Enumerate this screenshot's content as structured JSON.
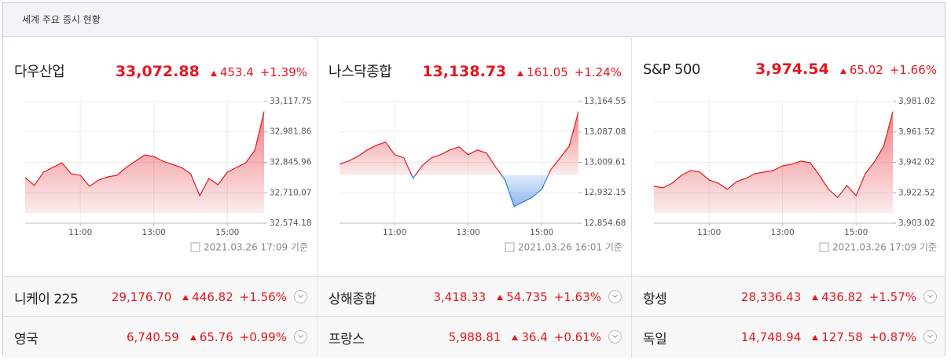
{
  "header": {
    "title": "세계 주요 증시 현황"
  },
  "chart_data": [
    {
      "type": "line",
      "title": "다우산업",
      "price": "33,072.88",
      "change": 453.4,
      "change_pct": "+1.39%",
      "x": [
        570,
        585,
        600,
        615,
        630,
        645,
        660,
        675,
        690,
        705,
        720,
        735,
        750,
        765,
        780,
        795,
        810,
        825,
        840,
        855,
        870,
        885,
        900,
        915,
        930,
        945,
        960
      ],
      "values": [
        32778,
        32743,
        32802,
        32823,
        32844,
        32795,
        32788,
        32739,
        32767,
        32781,
        32788,
        32823,
        32851,
        32879,
        32872,
        32851,
        32837,
        32823,
        32795,
        32697,
        32774,
        32746,
        32802,
        32823,
        32844,
        32900,
        33072.88
      ],
      "xlim": [
        570,
        960
      ],
      "xticks": [
        {
          "value": 660,
          "label": "11:00"
        },
        {
          "value": 780,
          "label": "13:00"
        },
        {
          "value": 900,
          "label": "15:00"
        }
      ],
      "ylim": [
        32574.18,
        33117.75
      ],
      "yticks": [
        {
          "value": 32574.18,
          "label": "32,574.18"
        },
        {
          "value": 32710.07,
          "label": "32,710.07"
        },
        {
          "value": 32845.96,
          "label": "32,845.96"
        },
        {
          "value": 32981.86,
          "label": "32,981.86"
        },
        {
          "value": 33117.75,
          "label": "33,117.75"
        }
      ],
      "grid": true,
      "timestamp": "2021.03.26 17:09 기준",
      "color": "#e3171f",
      "color_down": "#2d7be0"
    },
    {
      "type": "line",
      "title": "나스닥종합",
      "price": "13,138.73",
      "change": 161.05,
      "change_pct": "+1.24%",
      "x": [
        570,
        585,
        600,
        615,
        630,
        645,
        660,
        675,
        690,
        705,
        720,
        735,
        750,
        765,
        780,
        795,
        810,
        825,
        840,
        855,
        870,
        885,
        900,
        915,
        930,
        945,
        960
      ],
      "values": [
        13005,
        13013,
        13025,
        13041,
        13053,
        13061,
        13029,
        13021,
        12969,
        13001,
        13021,
        13029,
        13041,
        13049,
        13029,
        13041,
        13033,
        12997,
        12965,
        12897,
        12909,
        12921,
        12941,
        12991,
        13021,
        13051,
        13138.73
      ],
      "xlim": [
        570,
        960
      ],
      "xticks": [
        {
          "value": 660,
          "label": "11:00"
        },
        {
          "value": 780,
          "label": "13:00"
        },
        {
          "value": 900,
          "label": "15:00"
        }
      ],
      "ylim": [
        12854.68,
        13164.55
      ],
      "yticks": [
        {
          "value": 12854.68,
          "label": "12,854.68"
        },
        {
          "value": 12932.15,
          "label": "12,932.15"
        },
        {
          "value": 13009.61,
          "label": "13,009.61"
        },
        {
          "value": 13087.08,
          "label": "13,087.08"
        },
        {
          "value": 13164.55,
          "label": "13,164.55"
        }
      ],
      "grid": true,
      "timestamp": "2021.03.26 16:01 기준",
      "color": "#e3171f",
      "color_down": "#2d7be0"
    },
    {
      "type": "line",
      "title": "S&P 500",
      "price": "3,974.54",
      "change": 65.02,
      "change_pct": "+1.66%",
      "x": [
        570,
        585,
        600,
        615,
        630,
        645,
        660,
        675,
        690,
        705,
        720,
        735,
        750,
        765,
        780,
        795,
        810,
        825,
        840,
        855,
        870,
        885,
        900,
        915,
        930,
        945,
        960
      ],
      "values": [
        3926.7,
        3925.7,
        3928.7,
        3933.7,
        3936.8,
        3935.8,
        3930.7,
        3928.7,
        3924.7,
        3929.7,
        3931.7,
        3934.7,
        3935.8,
        3936.8,
        3939.8,
        3940.8,
        3942.8,
        3941.8,
        3933.7,
        3924.7,
        3919.6,
        3927.2,
        3920.7,
        3934.7,
        3942.3,
        3952.3,
        3974.54
      ],
      "xlim": [
        570,
        960
      ],
      "xticks": [
        {
          "value": 660,
          "label": "11:00"
        },
        {
          "value": 780,
          "label": "13:00"
        },
        {
          "value": 900,
          "label": "15:00"
        }
      ],
      "ylim": [
        3903.02,
        3981.02
      ],
      "yticks": [
        {
          "value": 3903.02,
          "label": "3,903.02"
        },
        {
          "value": 3922.52,
          "label": "3,922.52"
        },
        {
          "value": 3942.02,
          "label": "3,942.02"
        },
        {
          "value": 3961.52,
          "label": "3,961.52"
        },
        {
          "value": 3981.02,
          "label": "3,981.02"
        }
      ],
      "grid": true,
      "timestamp": "2021.03.26 17:09 기준",
      "color": "#e3171f",
      "color_down": "#2d7be0"
    }
  ],
  "rows": [
    [
      {
        "name": "니케이 225",
        "price": "29,176.70",
        "change": 446.82,
        "change_pct": "+1.56%"
      },
      {
        "name": "상해종합",
        "price": "3,418.33",
        "change": 54.735,
        "change_pct": "+1.63%"
      },
      {
        "name": "항셍",
        "price": "28,336.43",
        "change": 436.82,
        "change_pct": "+1.57%"
      }
    ],
    [
      {
        "name": "영국",
        "price": "6,740.59",
        "change": 65.76,
        "change_pct": "+0.99%"
      },
      {
        "name": "프랑스",
        "price": "5,988.81",
        "change": 36.4,
        "change_pct": "+0.61%"
      },
      {
        "name": "독일",
        "price": "14,748.94",
        "change": 127.58,
        "change_pct": "+0.87%"
      }
    ]
  ]
}
